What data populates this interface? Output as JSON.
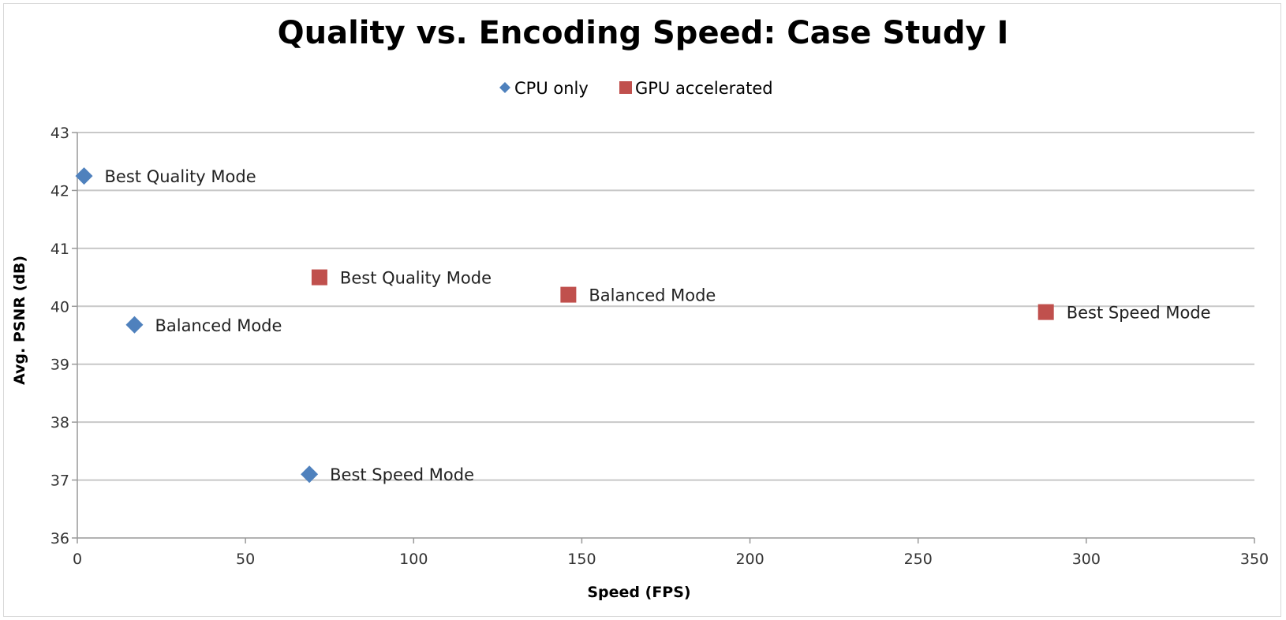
{
  "chart_data": {
    "type": "scatter",
    "title": "Quality vs. Encoding Speed: Case Study I",
    "xlabel": "Speed (FPS)",
    "ylabel": "Avg. PSNR (dB)",
    "xlim": [
      0,
      350
    ],
    "ylim": [
      36,
      43
    ],
    "xticks": [
      0,
      50,
      100,
      150,
      200,
      250,
      300,
      350
    ],
    "yticks": [
      36,
      37,
      38,
      39,
      40,
      41,
      42,
      43
    ],
    "grid": "horizontal",
    "legend_placement": "top-center",
    "series": [
      {
        "name": "CPU only",
        "marker": "diamond",
        "color": "#4f81bd",
        "points": [
          {
            "x": 2,
            "y": 42.25,
            "label": "Best Quality Mode"
          },
          {
            "x": 17,
            "y": 39.68,
            "label": "Balanced Mode"
          },
          {
            "x": 69,
            "y": 37.1,
            "label": "Best Speed Mode"
          }
        ]
      },
      {
        "name": "GPU accelerated",
        "marker": "square",
        "color": "#c0504d",
        "points": [
          {
            "x": 72,
            "y": 40.5,
            "label": "Best Quality Mode"
          },
          {
            "x": 146,
            "y": 40.2,
            "label": "Balanced Mode"
          },
          {
            "x": 288,
            "y": 39.9,
            "label": "Best Speed Mode"
          }
        ]
      }
    ]
  }
}
